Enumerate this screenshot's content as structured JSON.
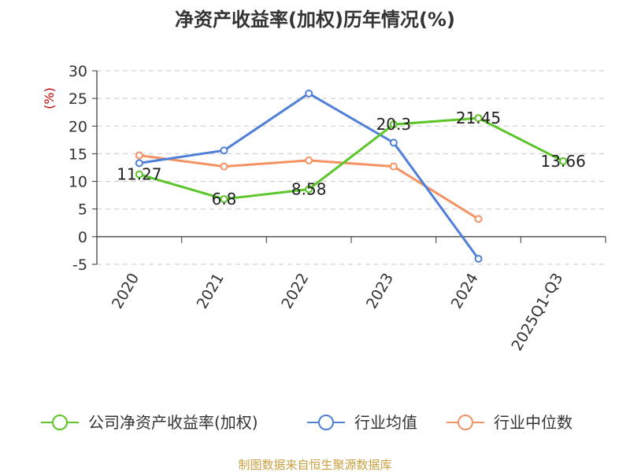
{
  "chart_data": {
    "type": "line",
    "title": "净资产收益率(加权)历年情况(%)",
    "ylabel": "(%)",
    "categories": [
      "2020",
      "2021",
      "2022",
      "2023",
      "2024",
      "2025Q1-Q3"
    ],
    "ylim": [
      -5,
      30
    ],
    "yticks": [
      -5,
      0,
      5,
      10,
      15,
      20,
      25,
      30
    ],
    "grid": true,
    "legend_position": "bottom",
    "series": [
      {
        "name": "公司净资产收益率(加权)",
        "color": "#5cc52a",
        "values": [
          11.27,
          6.8,
          8.58,
          20.3,
          21.45,
          13.66
        ],
        "labels": [
          "11.27",
          "6.8",
          "8.58",
          "20.3",
          "21.45",
          "13.66"
        ]
      },
      {
        "name": "行业均值",
        "color": "#4f7fd8",
        "values": [
          13.3,
          15.6,
          25.9,
          17.0,
          -4.0,
          null
        ]
      },
      {
        "name": "行业中位数",
        "color": "#f59262",
        "values": [
          14.7,
          12.7,
          13.8,
          12.7,
          3.2,
          null
        ]
      }
    ],
    "source": "制图数据来自恒生聚源数据库"
  }
}
